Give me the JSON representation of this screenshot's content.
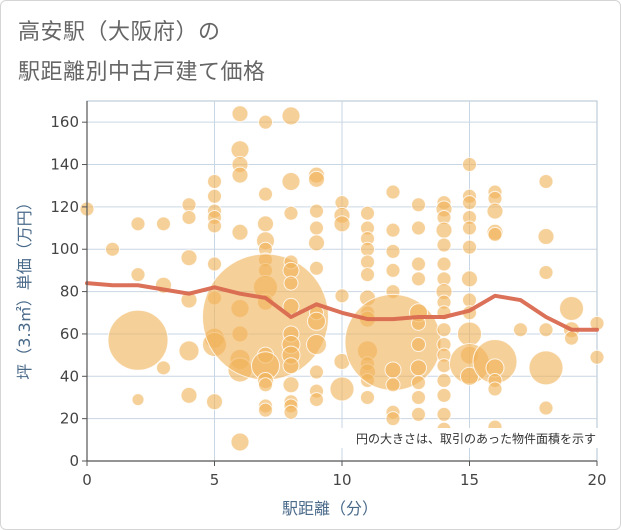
{
  "title_line1": "高安駅（大阪府）の",
  "title_line2": "駅距離別中古戸建て価格",
  "chart_data": {
    "type": "scatter",
    "xlabel": "駅距離（分）",
    "ylabel": "坪（3.3㎡）単価（万円）",
    "xlim": [
      0,
      20
    ],
    "ylim": [
      0,
      170
    ],
    "xticks": [
      0,
      5,
      10,
      15,
      20
    ],
    "yticks": [
      0,
      20,
      40,
      60,
      80,
      100,
      120,
      140,
      160
    ],
    "grid": true,
    "note": "円の大きさは、取引のあった物件面積を示す",
    "colors": {
      "bubble": "#f0b35a",
      "trend": "#d9694f",
      "grid": "#c9d6e3",
      "plot_border": "#b0c0d0"
    },
    "trend_line": {
      "x": [
        0,
        1,
        2,
        3,
        4,
        5,
        6,
        7,
        8,
        9,
        10,
        11,
        12,
        13,
        14,
        15,
        16,
        17,
        18,
        19,
        20
      ],
      "y": [
        84,
        83,
        83,
        81,
        79,
        82,
        79,
        77,
        68,
        74,
        70,
        67,
        67,
        68,
        68,
        71,
        78,
        76,
        68,
        62,
        62
      ]
    },
    "points": [
      {
        "x": 0,
        "y": 119,
        "r": 7
      },
      {
        "x": 1,
        "y": 100,
        "r": 7
      },
      {
        "x": 2,
        "y": 112,
        "r": 7
      },
      {
        "x": 2,
        "y": 88,
        "r": 7
      },
      {
        "x": 2,
        "y": 57,
        "r": 30
      },
      {
        "x": 2,
        "y": 29,
        "r": 6
      },
      {
        "x": 3,
        "y": 112,
        "r": 7
      },
      {
        "x": 3,
        "y": 83,
        "r": 8
      },
      {
        "x": 3,
        "y": 44,
        "r": 7
      },
      {
        "x": 4,
        "y": 121,
        "r": 7
      },
      {
        "x": 4,
        "y": 115,
        "r": 7
      },
      {
        "x": 4,
        "y": 96,
        "r": 8
      },
      {
        "x": 4,
        "y": 76,
        "r": 8
      },
      {
        "x": 4,
        "y": 52,
        "r": 10
      },
      {
        "x": 4,
        "y": 31,
        "r": 8
      },
      {
        "x": 5,
        "y": 132,
        "r": 7
      },
      {
        "x": 5,
        "y": 125,
        "r": 7
      },
      {
        "x": 5,
        "y": 118,
        "r": 7
      },
      {
        "x": 5,
        "y": 115,
        "r": 7
      },
      {
        "x": 5,
        "y": 111,
        "r": 7
      },
      {
        "x": 5,
        "y": 93,
        "r": 7
      },
      {
        "x": 5,
        "y": 77,
        "r": 7
      },
      {
        "x": 5,
        "y": 58,
        "r": 10
      },
      {
        "x": 5,
        "y": 55,
        "r": 12
      },
      {
        "x": 5,
        "y": 28,
        "r": 8
      },
      {
        "x": 6,
        "y": 164,
        "r": 8
      },
      {
        "x": 6,
        "y": 147,
        "r": 9
      },
      {
        "x": 6,
        "y": 140,
        "r": 8
      },
      {
        "x": 6,
        "y": 135,
        "r": 8
      },
      {
        "x": 6,
        "y": 108,
        "r": 8
      },
      {
        "x": 6,
        "y": 72,
        "r": 9
      },
      {
        "x": 6,
        "y": 60,
        "r": 8
      },
      {
        "x": 6,
        "y": 48,
        "r": 10
      },
      {
        "x": 6,
        "y": 43,
        "r": 12
      },
      {
        "x": 6,
        "y": 9,
        "r": 9
      },
      {
        "x": 7,
        "y": 160,
        "r": 7
      },
      {
        "x": 7,
        "y": 126,
        "r": 7
      },
      {
        "x": 7,
        "y": 112,
        "r": 8
      },
      {
        "x": 7,
        "y": 104,
        "r": 9
      },
      {
        "x": 7,
        "y": 100,
        "r": 7
      },
      {
        "x": 7,
        "y": 95,
        "r": 7
      },
      {
        "x": 7,
        "y": 90,
        "r": 7
      },
      {
        "x": 7,
        "y": 82,
        "r": 12
      },
      {
        "x": 7,
        "y": 75,
        "r": 8
      },
      {
        "x": 7,
        "y": 68,
        "r": 63
      },
      {
        "x": 7,
        "y": 50,
        "r": 8
      },
      {
        "x": 7,
        "y": 45,
        "r": 14
      },
      {
        "x": 7,
        "y": 38,
        "r": 8
      },
      {
        "x": 7,
        "y": 36,
        "r": 7
      },
      {
        "x": 7,
        "y": 26,
        "r": 7
      },
      {
        "x": 7,
        "y": 24,
        "r": 7
      },
      {
        "x": 8,
        "y": 163,
        "r": 9
      },
      {
        "x": 8,
        "y": 132,
        "r": 9
      },
      {
        "x": 8,
        "y": 117,
        "r": 7
      },
      {
        "x": 8,
        "y": 94,
        "r": 7
      },
      {
        "x": 8,
        "y": 90,
        "r": 8
      },
      {
        "x": 8,
        "y": 84,
        "r": 7
      },
      {
        "x": 8,
        "y": 73,
        "r": 8
      },
      {
        "x": 8,
        "y": 60,
        "r": 8
      },
      {
        "x": 8,
        "y": 55,
        "r": 9
      },
      {
        "x": 8,
        "y": 50,
        "r": 9
      },
      {
        "x": 8,
        "y": 45,
        "r": 8
      },
      {
        "x": 8,
        "y": 36,
        "r": 8
      },
      {
        "x": 8,
        "y": 28,
        "r": 7
      },
      {
        "x": 8,
        "y": 26,
        "r": 7
      },
      {
        "x": 8,
        "y": 23,
        "r": 7
      },
      {
        "x": 9,
        "y": 135,
        "r": 8
      },
      {
        "x": 9,
        "y": 133,
        "r": 8
      },
      {
        "x": 9,
        "y": 118,
        "r": 7
      },
      {
        "x": 9,
        "y": 110,
        "r": 7
      },
      {
        "x": 9,
        "y": 103,
        "r": 8
      },
      {
        "x": 9,
        "y": 91,
        "r": 7
      },
      {
        "x": 9,
        "y": 70,
        "r": 7
      },
      {
        "x": 9,
        "y": 66,
        "r": 9
      },
      {
        "x": 9,
        "y": 55,
        "r": 10
      },
      {
        "x": 9,
        "y": 42,
        "r": 7
      },
      {
        "x": 9,
        "y": 33,
        "r": 7
      },
      {
        "x": 9,
        "y": 29,
        "r": 7
      },
      {
        "x": 10,
        "y": 122,
        "r": 7
      },
      {
        "x": 10,
        "y": 116,
        "r": 8
      },
      {
        "x": 10,
        "y": 112,
        "r": 8
      },
      {
        "x": 10,
        "y": 78,
        "r": 7
      },
      {
        "x": 10,
        "y": 47,
        "r": 8
      },
      {
        "x": 10,
        "y": 34,
        "r": 12
      },
      {
        "x": 11,
        "y": 117,
        "r": 7
      },
      {
        "x": 11,
        "y": 110,
        "r": 7
      },
      {
        "x": 11,
        "y": 105,
        "r": 7
      },
      {
        "x": 11,
        "y": 100,
        "r": 7
      },
      {
        "x": 11,
        "y": 94,
        "r": 7
      },
      {
        "x": 11,
        "y": 88,
        "r": 7
      },
      {
        "x": 11,
        "y": 77,
        "r": 8
      },
      {
        "x": 11,
        "y": 70,
        "r": 7
      },
      {
        "x": 11,
        "y": 67,
        "r": 8
      },
      {
        "x": 11,
        "y": 52,
        "r": 10
      },
      {
        "x": 11,
        "y": 46,
        "r": 7
      },
      {
        "x": 11,
        "y": 42,
        "r": 8
      },
      {
        "x": 11,
        "y": 38,
        "r": 7
      },
      {
        "x": 11,
        "y": 30,
        "r": 7
      },
      {
        "x": 12,
        "y": 127,
        "r": 7
      },
      {
        "x": 12,
        "y": 109,
        "r": 7
      },
      {
        "x": 12,
        "y": 99,
        "r": 7
      },
      {
        "x": 12,
        "y": 90,
        "r": 7
      },
      {
        "x": 12,
        "y": 80,
        "r": 7
      },
      {
        "x": 12,
        "y": 56,
        "r": 48
      },
      {
        "x": 12,
        "y": 43,
        "r": 8
      },
      {
        "x": 12,
        "y": 36,
        "r": 7
      },
      {
        "x": 12,
        "y": 23,
        "r": 7
      },
      {
        "x": 12,
        "y": 20,
        "r": 7
      },
      {
        "x": 13,
        "y": 121,
        "r": 7
      },
      {
        "x": 13,
        "y": 110,
        "r": 7
      },
      {
        "x": 13,
        "y": 93,
        "r": 7
      },
      {
        "x": 13,
        "y": 86,
        "r": 7
      },
      {
        "x": 13,
        "y": 70,
        "r": 9
      },
      {
        "x": 13,
        "y": 65,
        "r": 7
      },
      {
        "x": 13,
        "y": 55,
        "r": 7
      },
      {
        "x": 13,
        "y": 44,
        "r": 8
      },
      {
        "x": 13,
        "y": 37,
        "r": 7
      },
      {
        "x": 13,
        "y": 30,
        "r": 7
      },
      {
        "x": 13,
        "y": 22,
        "r": 7
      },
      {
        "x": 14,
        "y": 122,
        "r": 7
      },
      {
        "x": 14,
        "y": 119,
        "r": 8
      },
      {
        "x": 14,
        "y": 115,
        "r": 7
      },
      {
        "x": 14,
        "y": 109,
        "r": 8
      },
      {
        "x": 14,
        "y": 102,
        "r": 7
      },
      {
        "x": 14,
        "y": 93,
        "r": 7
      },
      {
        "x": 14,
        "y": 86,
        "r": 7
      },
      {
        "x": 14,
        "y": 80,
        "r": 8
      },
      {
        "x": 14,
        "y": 75,
        "r": 7
      },
      {
        "x": 14,
        "y": 70,
        "r": 7
      },
      {
        "x": 14,
        "y": 62,
        "r": 7
      },
      {
        "x": 14,
        "y": 55,
        "r": 7
      },
      {
        "x": 14,
        "y": 50,
        "r": 7
      },
      {
        "x": 14,
        "y": 45,
        "r": 7
      },
      {
        "x": 14,
        "y": 38,
        "r": 7
      },
      {
        "x": 14,
        "y": 31,
        "r": 7
      },
      {
        "x": 14,
        "y": 22,
        "r": 7
      },
      {
        "x": 14,
        "y": 15,
        "r": 7
      },
      {
        "x": 15,
        "y": 140,
        "r": 7
      },
      {
        "x": 15,
        "y": 125,
        "r": 7
      },
      {
        "x": 15,
        "y": 122,
        "r": 7
      },
      {
        "x": 15,
        "y": 115,
        "r": 7
      },
      {
        "x": 15,
        "y": 110,
        "r": 7
      },
      {
        "x": 15,
        "y": 101,
        "r": 7
      },
      {
        "x": 15,
        "y": 86,
        "r": 8
      },
      {
        "x": 15,
        "y": 76,
        "r": 7
      },
      {
        "x": 15,
        "y": 70,
        "r": 7
      },
      {
        "x": 15,
        "y": 60,
        "r": 12
      },
      {
        "x": 15,
        "y": 50,
        "r": 9
      },
      {
        "x": 15,
        "y": 46,
        "r": 20
      },
      {
        "x": 15,
        "y": 40,
        "r": 9
      },
      {
        "x": 16,
        "y": 127,
        "r": 7
      },
      {
        "x": 16,
        "y": 124,
        "r": 7
      },
      {
        "x": 16,
        "y": 118,
        "r": 8
      },
      {
        "x": 16,
        "y": 108,
        "r": 8
      },
      {
        "x": 16,
        "y": 107,
        "r": 7
      },
      {
        "x": 16,
        "y": 47,
        "r": 22
      },
      {
        "x": 16,
        "y": 44,
        "r": 9
      },
      {
        "x": 16,
        "y": 38,
        "r": 7
      },
      {
        "x": 16,
        "y": 34,
        "r": 7
      },
      {
        "x": 16,
        "y": 16,
        "r": 7
      },
      {
        "x": 17,
        "y": 62,
        "r": 7
      },
      {
        "x": 18,
        "y": 132,
        "r": 7
      },
      {
        "x": 18,
        "y": 106,
        "r": 8
      },
      {
        "x": 18,
        "y": 89,
        "r": 7
      },
      {
        "x": 18,
        "y": 62,
        "r": 7
      },
      {
        "x": 18,
        "y": 44,
        "r": 17
      },
      {
        "x": 18,
        "y": 25,
        "r": 7
      },
      {
        "x": 19,
        "y": 72,
        "r": 12
      },
      {
        "x": 19,
        "y": 62,
        "r": 8
      },
      {
        "x": 19,
        "y": 58,
        "r": 7
      },
      {
        "x": 20,
        "y": 65,
        "r": 7
      },
      {
        "x": 20,
        "y": 49,
        "r": 7
      }
    ]
  }
}
